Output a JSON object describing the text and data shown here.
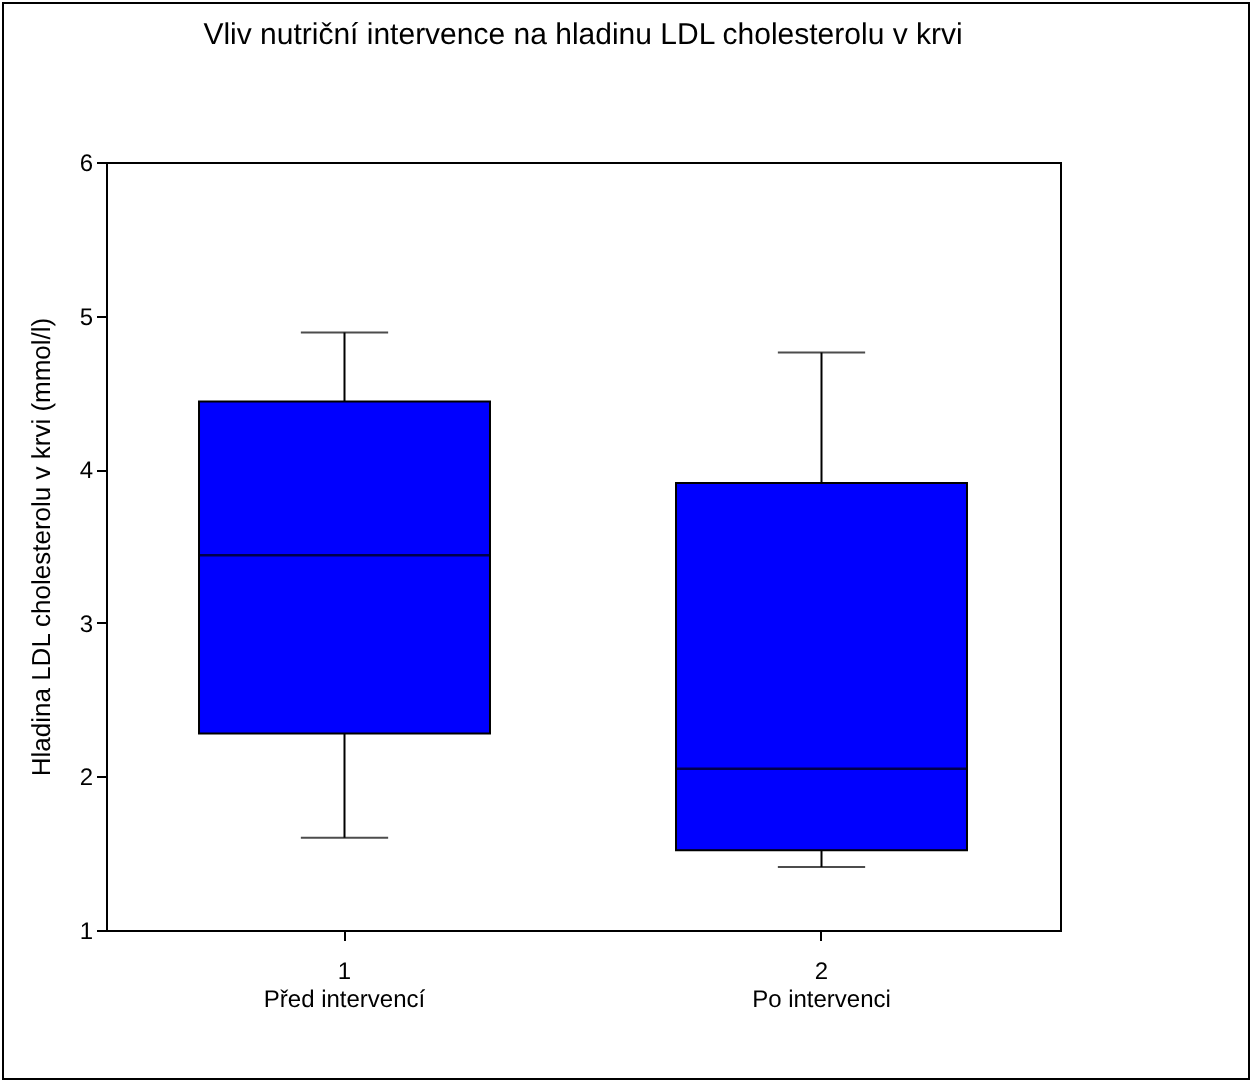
{
  "chart_data": {
    "type": "box",
    "title": "Vliv nutriční intervence na hladinu LDL cholesterolu v krvi",
    "ylabel": "Hladina LDL cholesterolu v krvi (mmol/l)",
    "categories": [
      "1",
      "2"
    ],
    "annotations": [
      "Před intervencí",
      "Po intervenci"
    ],
    "series": [
      {
        "color": "#0000ff",
        "boxes": [
          {
            "low": 1.6,
            "q1": 2.28,
            "median": 3.44,
            "q3": 4.44,
            "high": 4.89
          },
          {
            "low": 1.41,
            "q1": 1.52,
            "median": 2.05,
            "q3": 3.91,
            "high": 4.76
          }
        ]
      }
    ],
    "ylim": [
      1,
      6
    ],
    "yticks": [
      1,
      2,
      3,
      4,
      5,
      6
    ]
  }
}
